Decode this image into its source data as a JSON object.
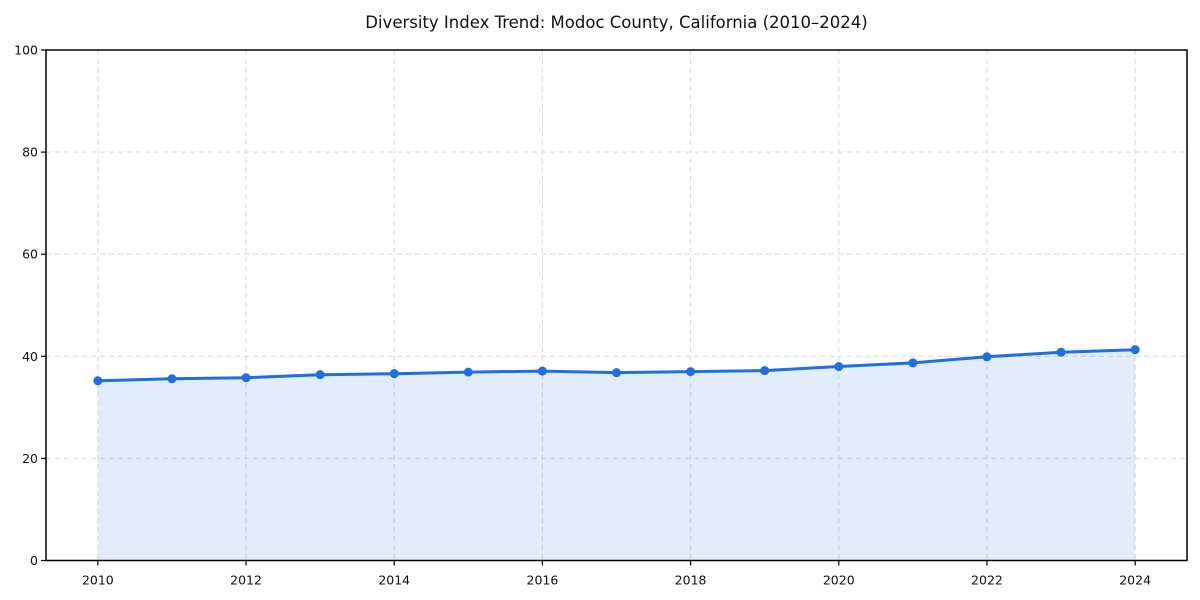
{
  "chart_data": {
    "type": "area",
    "title": "Diversity Index Trend: Modoc County, California (2010–2024)",
    "x": [
      2010,
      2011,
      2012,
      2013,
      2014,
      2015,
      2016,
      2017,
      2018,
      2019,
      2020,
      2021,
      2022,
      2023,
      2024
    ],
    "series": [
      {
        "name": "Diversity Index",
        "values": [
          35.2,
          35.6,
          35.8,
          36.4,
          36.6,
          36.9,
          37.1,
          36.8,
          37.0,
          37.2,
          38.0,
          38.7,
          39.9,
          40.8,
          41.3
        ]
      }
    ],
    "xlabel": "",
    "ylabel": "",
    "xlim": [
      2009.3,
      2024.7
    ],
    "ylim": [
      0,
      100
    ],
    "xticks": [
      2010,
      2012,
      2014,
      2016,
      2018,
      2020,
      2022,
      2024
    ],
    "yticks": [
      0,
      20,
      40,
      60,
      80,
      100
    ],
    "grid": true,
    "grid_style": "dashed",
    "legend": false,
    "colors": {
      "line": "#1f6fe0",
      "marker": "#1f6fe0",
      "fill": "rgba(31,111,224,0.13)",
      "grid": "#dcdcdc",
      "spine": "#000000",
      "text": "#111111",
      "background": "#ffffff"
    }
  }
}
